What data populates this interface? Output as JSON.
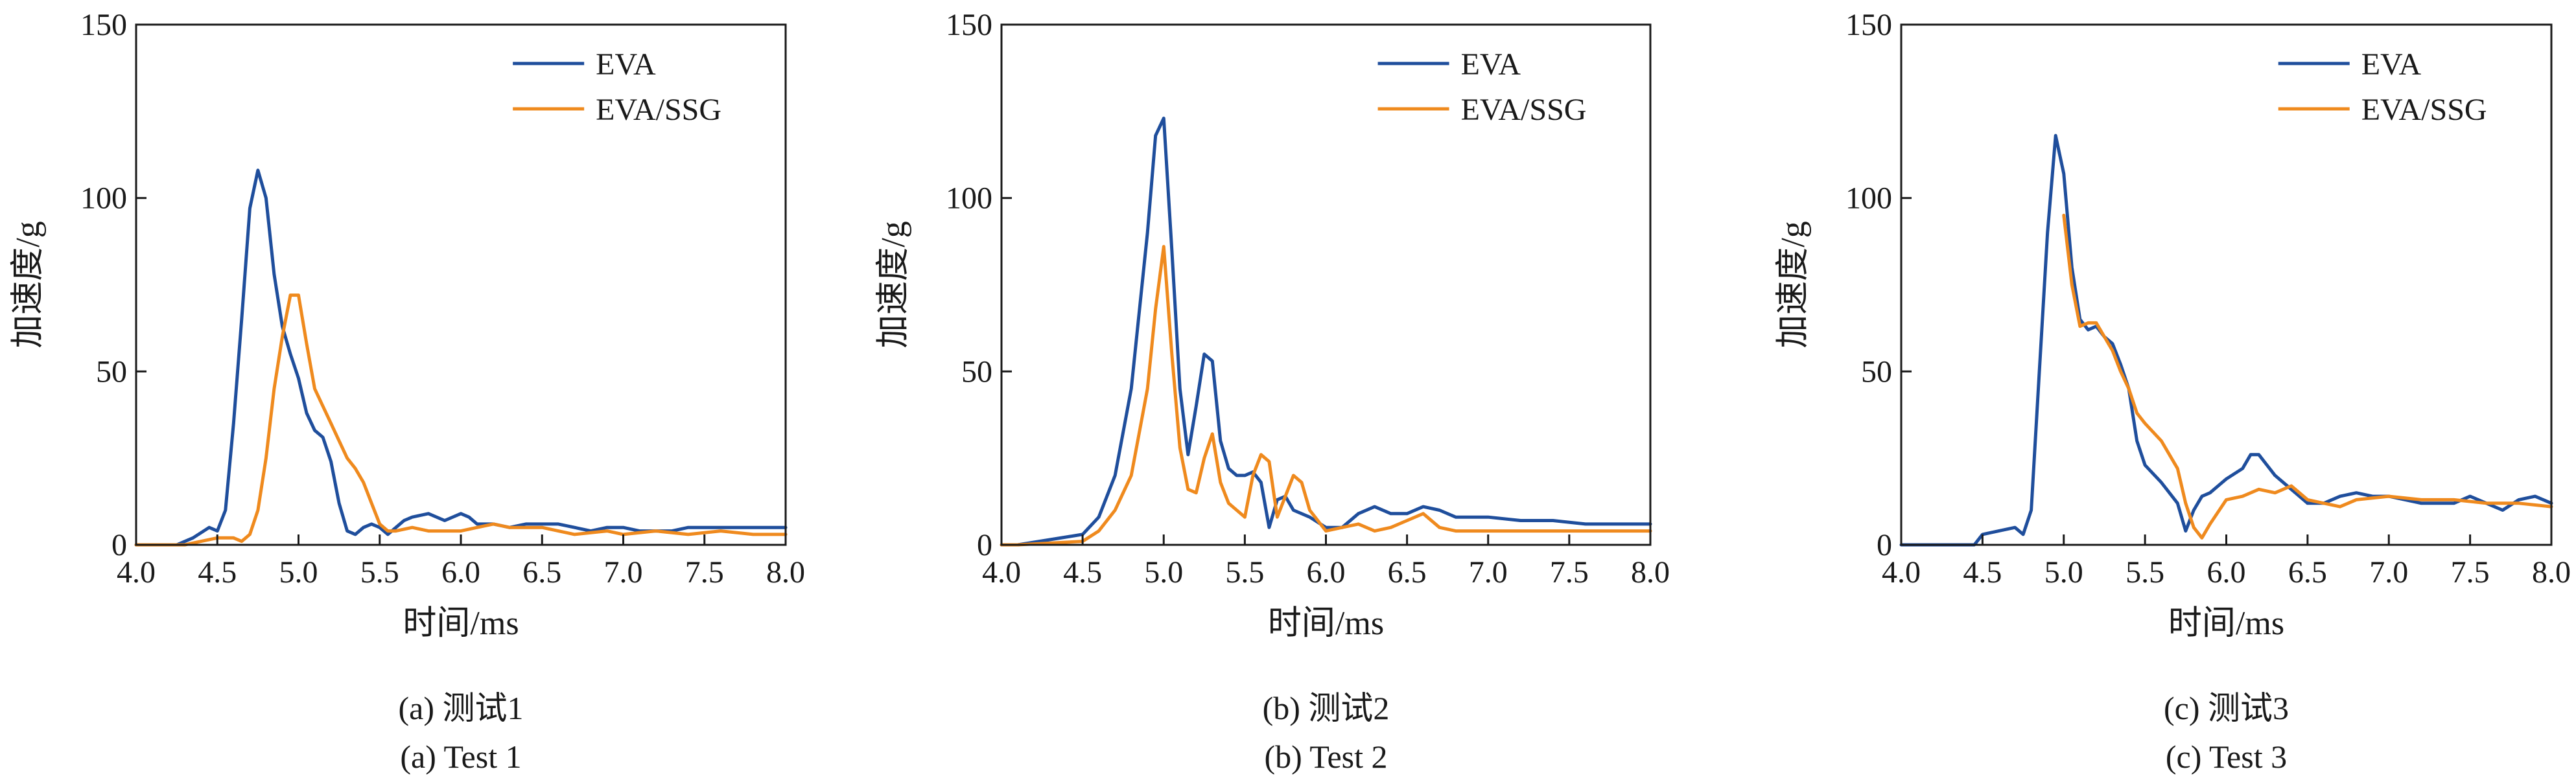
{
  "colors": {
    "eva": "#1f4e9c",
    "eva_ssg": "#ef8a1e",
    "axis": "#1a1a1a"
  },
  "chart_data": [
    {
      "type": "line",
      "caption_cn": "(a) 测试1",
      "caption_en": "(a) Test 1",
      "xlabel": "时间/ms",
      "ylabel": "加速度/g",
      "xlim": [
        4.0,
        8.0
      ],
      "ylim": [
        0,
        150
      ],
      "xticks": [
        "4.0",
        "4.5",
        "5.0",
        "5.5",
        "6.0",
        "6.5",
        "7.0",
        "7.5",
        "8.0"
      ],
      "yticks": [
        "0",
        "50",
        "100",
        "150"
      ],
      "legend_position": "top-right",
      "series": [
        {
          "name": "EVA",
          "x": [
            4.0,
            4.25,
            4.35,
            4.45,
            4.5,
            4.55,
            4.6,
            4.65,
            4.7,
            4.75,
            4.8,
            4.85,
            4.9,
            4.95,
            5.0,
            5.05,
            5.1,
            5.15,
            5.2,
            5.25,
            5.3,
            5.35,
            5.4,
            5.45,
            5.5,
            5.55,
            5.6,
            5.65,
            5.7,
            5.8,
            5.9,
            6.0,
            6.05,
            6.1,
            6.15,
            6.2,
            6.3,
            6.4,
            6.5,
            6.6,
            6.7,
            6.8,
            6.9,
            7.0,
            7.1,
            7.2,
            7.3,
            7.4,
            7.5,
            7.6,
            7.7,
            7.8,
            8.0
          ],
          "values": [
            0,
            0,
            2,
            5,
            4,
            10,
            35,
            65,
            97,
            108,
            100,
            78,
            63,
            55,
            48,
            38,
            33,
            31,
            24,
            12,
            4,
            3,
            5,
            6,
            5,
            3,
            5,
            7,
            8,
            9,
            7,
            9,
            8,
            6,
            6,
            6,
            5,
            6,
            6,
            6,
            5,
            4,
            5,
            5,
            4,
            4,
            4,
            5,
            5,
            5,
            5,
            5,
            5
          ]
        },
        {
          "name": "EVA/SSG",
          "x": [
            4.0,
            4.3,
            4.4,
            4.5,
            4.6,
            4.65,
            4.7,
            4.75,
            4.8,
            4.85,
            4.9,
            4.95,
            5.0,
            5.05,
            5.1,
            5.15,
            5.2,
            5.25,
            5.3,
            5.35,
            5.4,
            5.45,
            5.5,
            5.55,
            5.6,
            5.7,
            5.8,
            5.9,
            6.0,
            6.1,
            6.2,
            6.3,
            6.5,
            6.7,
            6.9,
            7.0,
            7.2,
            7.4,
            7.6,
            7.8,
            8.0
          ],
          "values": [
            0,
            0,
            1,
            2,
            2,
            1,
            3,
            10,
            25,
            45,
            60,
            72,
            72,
            58,
            45,
            40,
            35,
            30,
            25,
            22,
            18,
            12,
            6,
            4,
            4,
            5,
            4,
            4,
            4,
            5,
            6,
            5,
            5,
            3,
            4,
            3,
            4,
            3,
            4,
            3,
            3
          ]
        }
      ]
    },
    {
      "type": "line",
      "caption_cn": "(b) 测试2",
      "caption_en": "(b) Test 2",
      "xlabel": "时间/ms",
      "ylabel": "加速度/g",
      "xlim": [
        4.0,
        8.0
      ],
      "ylim": [
        0,
        150
      ],
      "xticks": [
        "4.0",
        "4.5",
        "5.0",
        "5.5",
        "6.0",
        "6.5",
        "7.0",
        "7.5",
        "8.0"
      ],
      "yticks": [
        "0",
        "50",
        "100",
        "150"
      ],
      "legend_position": "top-right",
      "series": [
        {
          "name": "EVA",
          "x": [
            4.0,
            4.1,
            4.5,
            4.6,
            4.7,
            4.8,
            4.9,
            4.95,
            5.0,
            5.05,
            5.1,
            5.15,
            5.2,
            5.25,
            5.3,
            5.35,
            5.4,
            5.45,
            5.5,
            5.55,
            5.6,
            5.65,
            5.7,
            5.75,
            5.8,
            5.9,
            6.0,
            6.1,
            6.2,
            6.3,
            6.4,
            6.5,
            6.6,
            6.7,
            6.8,
            7.0,
            7.2,
            7.4,
            7.6,
            7.8,
            8.0
          ],
          "values": [
            0,
            0,
            3,
            8,
            20,
            45,
            90,
            118,
            123,
            85,
            45,
            26,
            40,
            55,
            53,
            30,
            22,
            20,
            20,
            21,
            18,
            5,
            13,
            14,
            10,
            8,
            5,
            5,
            9,
            11,
            9,
            9,
            11,
            10,
            8,
            8,
            7,
            7,
            6,
            6,
            6
          ]
        },
        {
          "name": "EVA/SSG",
          "x": [
            4.0,
            4.1,
            4.5,
            4.6,
            4.7,
            4.8,
            4.9,
            4.95,
            5.0,
            5.05,
            5.1,
            5.15,
            5.2,
            5.25,
            5.3,
            5.35,
            5.4,
            5.45,
            5.5,
            5.55,
            5.6,
            5.65,
            5.7,
            5.75,
            5.8,
            5.85,
            5.9,
            6.0,
            6.1,
            6.2,
            6.3,
            6.4,
            6.5,
            6.6,
            6.7,
            6.8,
            7.0,
            7.2,
            7.4,
            7.6,
            8.0
          ],
          "values": [
            0,
            0,
            1,
            4,
            10,
            20,
            45,
            68,
            86,
            55,
            28,
            16,
            15,
            25,
            32,
            18,
            12,
            10,
            8,
            20,
            26,
            24,
            8,
            14,
            20,
            18,
            10,
            4,
            5,
            6,
            4,
            5,
            7,
            9,
            5,
            4,
            4,
            4,
            4,
            4,
            4
          ]
        }
      ]
    },
    {
      "type": "line",
      "caption_cn": "(c) 测试3",
      "caption_en": "(c) Test 3",
      "xlabel": "时间/ms",
      "ylabel": "加速度/g",
      "xlim": [
        4.0,
        8.0
      ],
      "ylim": [
        0,
        150
      ],
      "xticks": [
        "4.0",
        "4.5",
        "5.0",
        "5.5",
        "6.0",
        "6.5",
        "7.0",
        "7.5",
        "8.0"
      ],
      "yticks": [
        "0",
        "50",
        "100",
        "150"
      ],
      "legend_position": "top-right",
      "series": [
        {
          "name": "EVA",
          "x": [
            4.0,
            4.4,
            4.45,
            4.5,
            4.6,
            4.7,
            4.75,
            4.8,
            4.85,
            4.9,
            4.95,
            5.0,
            5.05,
            5.1,
            5.15,
            5.2,
            5.25,
            5.3,
            5.35,
            5.4,
            5.45,
            5.5,
            5.6,
            5.7,
            5.75,
            5.8,
            5.85,
            5.9,
            6.0,
            6.1,
            6.15,
            6.2,
            6.25,
            6.3,
            6.4,
            6.5,
            6.6,
            6.7,
            6.8,
            6.9,
            7.0,
            7.2,
            7.4,
            7.5,
            7.6,
            7.7,
            7.8,
            7.9,
            8.0
          ],
          "values": [
            0,
            0,
            0,
            3,
            4,
            5,
            3,
            10,
            50,
            90,
            118,
            107,
            80,
            65,
            62,
            63,
            60,
            58,
            52,
            45,
            30,
            23,
            18,
            12,
            4,
            10,
            14,
            15,
            19,
            22,
            26,
            26,
            23,
            20,
            16,
            12,
            12,
            14,
            15,
            14,
            14,
            12,
            12,
            14,
            12,
            10,
            13,
            14,
            12
          ]
        },
        {
          "name": "EVA/SSG",
          "x": [
            5.0,
            5.05,
            5.1,
            5.15,
            5.2,
            5.25,
            5.3,
            5.35,
            5.4,
            5.45,
            5.5,
            5.6,
            5.7,
            5.75,
            5.8,
            5.85,
            5.9,
            6.0,
            6.1,
            6.2,
            6.3,
            6.35,
            6.4,
            6.5,
            6.6,
            6.7,
            6.8,
            7.0,
            7.2,
            7.4,
            7.6,
            7.8,
            8.0
          ],
          "values": [
            95,
            75,
            63,
            64,
            64,
            60,
            56,
            50,
            45,
            38,
            35,
            30,
            22,
            12,
            5,
            2,
            6,
            13,
            14,
            16,
            15,
            16,
            17,
            13,
            12,
            11,
            13,
            14,
            13,
            13,
            12,
            12,
            11
          ]
        }
      ]
    }
  ]
}
